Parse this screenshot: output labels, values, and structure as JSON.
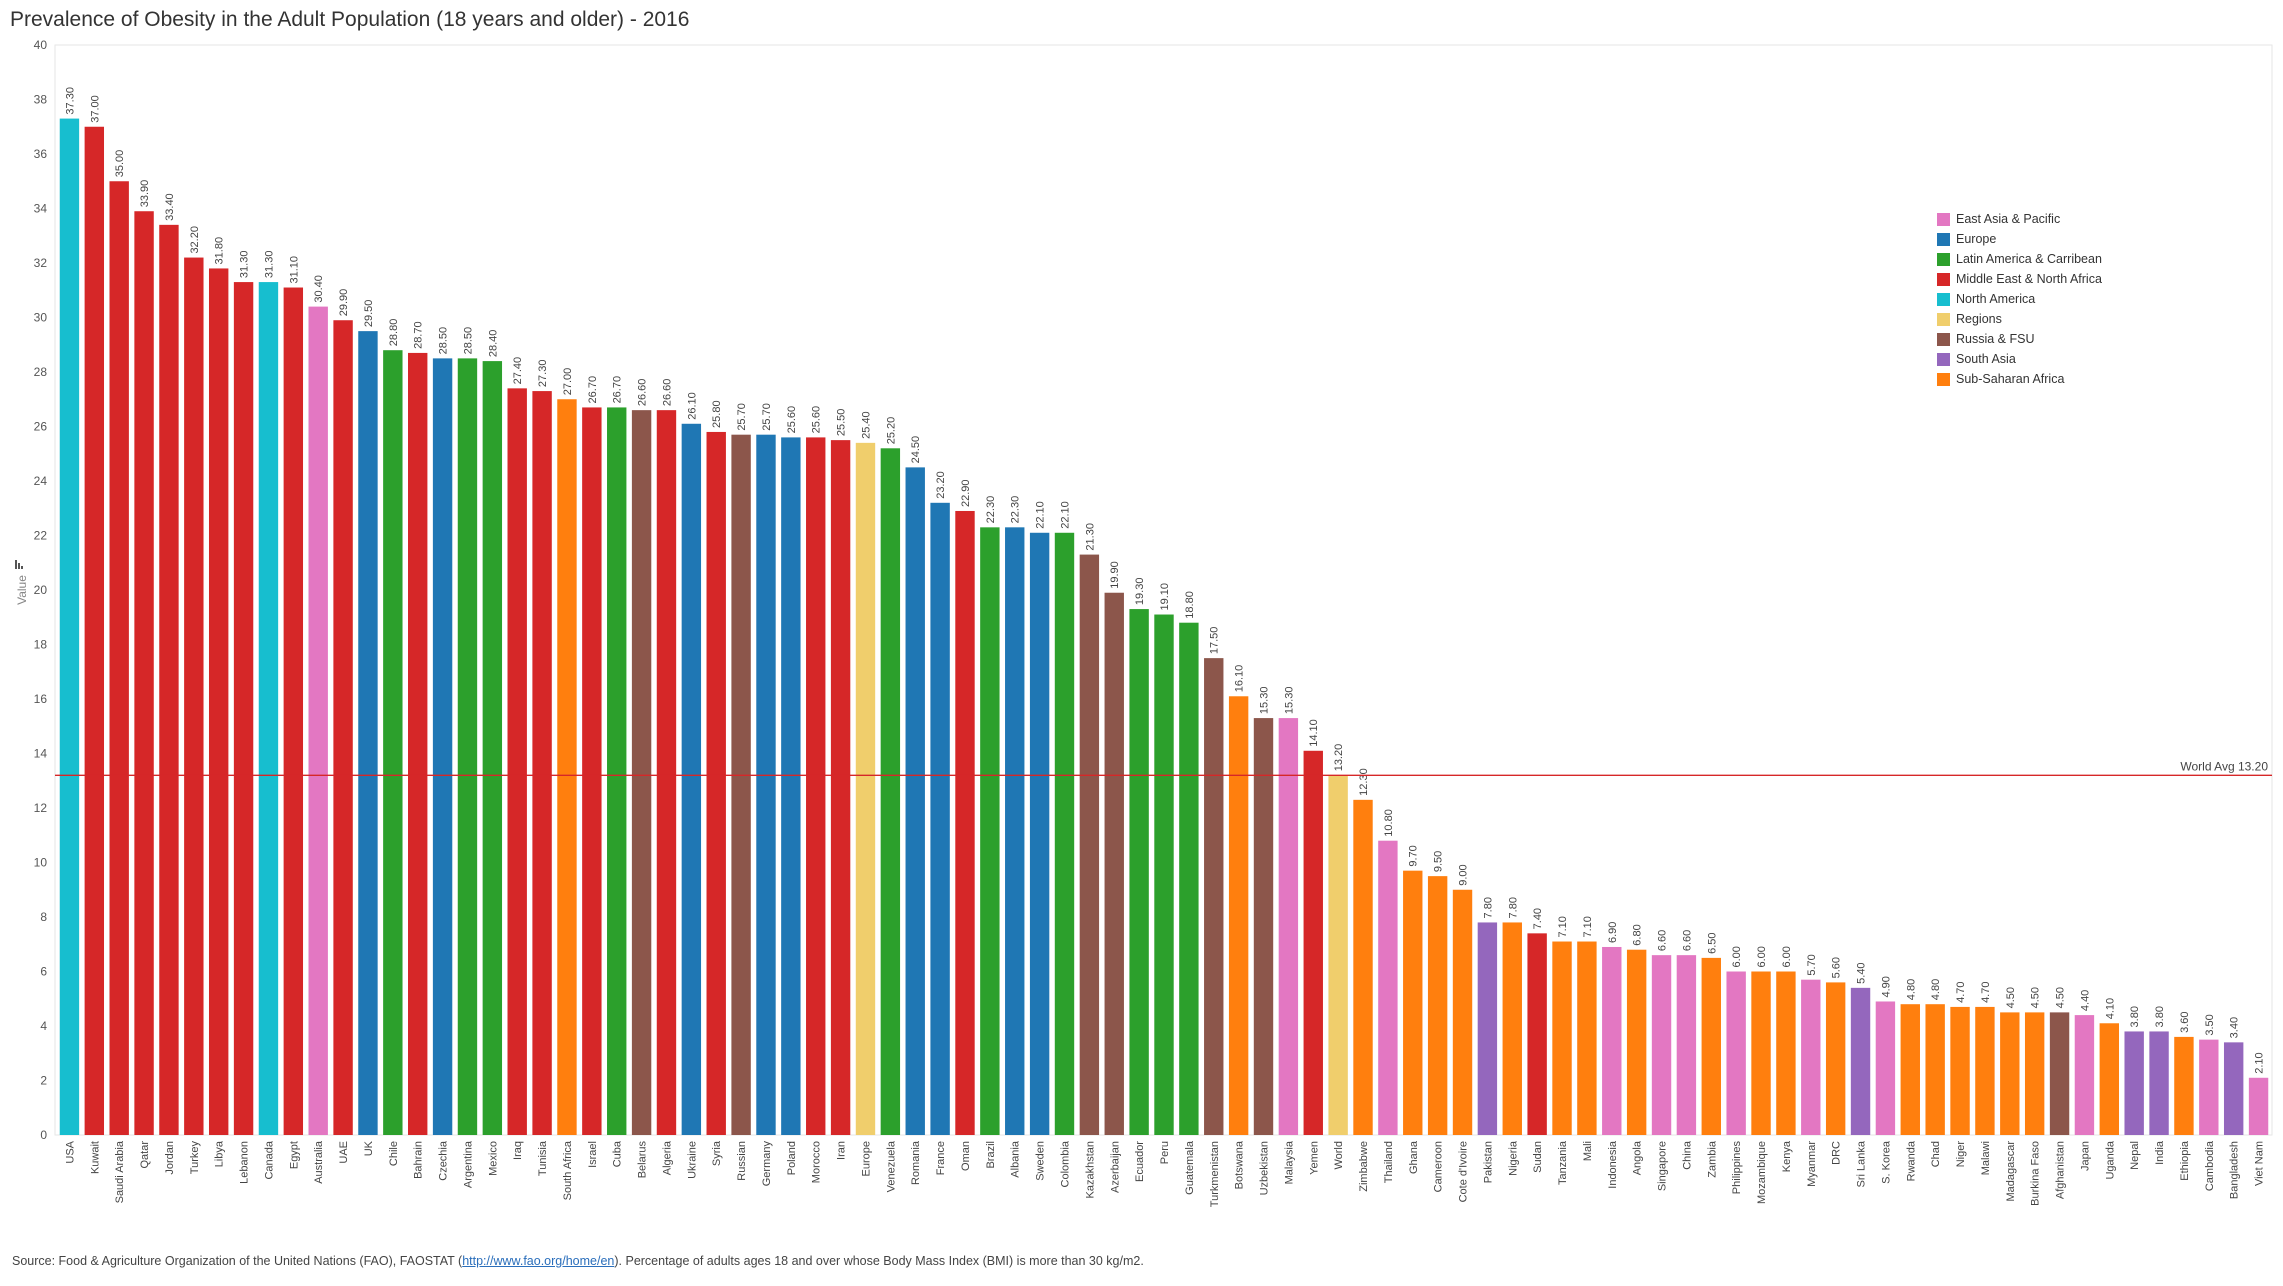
{
  "chart_data": {
    "type": "bar",
    "title": "Prevalence of Obesity in the Adult Population (18 years and older) - 2016",
    "ylabel": "Value",
    "xlabel": "",
    "ylim": [
      0,
      40
    ],
    "yticks": [
      0,
      2,
      4,
      6,
      8,
      10,
      12,
      14,
      16,
      18,
      20,
      22,
      24,
      26,
      28,
      30,
      32,
      34,
      36,
      38,
      40
    ],
    "reference_line": {
      "label": "World Avg 13.20",
      "value": 13.2
    },
    "legend_placement": "right",
    "regions": [
      {
        "name": "East Asia & Pacific",
        "color": "#e377c2"
      },
      {
        "name": "Europe",
        "color": "#1f77b4"
      },
      {
        "name": "Latin America & Carribean",
        "color": "#2ca02c"
      },
      {
        "name": "Middle East & North Africa",
        "color": "#d62728"
      },
      {
        "name": "North America",
        "color": "#17becf"
      },
      {
        "name": "Regions",
        "color": "#f0ce6c"
      },
      {
        "name": "Russia & FSU",
        "color": "#8c564b"
      },
      {
        "name": "South Asia",
        "color": "#9467bd"
      },
      {
        "name": "Sub-Saharan Africa",
        "color": "#ff7f0e"
      }
    ],
    "bars": [
      {
        "country": "USA",
        "value": 37.3,
        "label": "37.30",
        "region": "North America"
      },
      {
        "country": "Kuwait",
        "value": 37.0,
        "label": "37.00",
        "region": "Middle East & North Africa"
      },
      {
        "country": "Saudi Arabia",
        "value": 35.0,
        "label": "35.00",
        "region": "Middle East & North Africa"
      },
      {
        "country": "Qatar",
        "value": 33.9,
        "label": "33.90",
        "region": "Middle East & North Africa"
      },
      {
        "country": "Jordan",
        "value": 33.4,
        "label": "33.40",
        "region": "Middle East & North Africa"
      },
      {
        "country": "Turkey",
        "value": 32.2,
        "label": "32.20",
        "region": "Middle East & North Africa"
      },
      {
        "country": "Libya",
        "value": 31.8,
        "label": "31.80",
        "region": "Middle East & North Africa"
      },
      {
        "country": "Lebanon",
        "value": 31.3,
        "label": "31.30",
        "region": "Middle East & North Africa"
      },
      {
        "country": "Canada",
        "value": 31.3,
        "label": "31.30",
        "region": "North America"
      },
      {
        "country": "Egypt",
        "value": 31.1,
        "label": "31.10",
        "region": "Middle East & North Africa"
      },
      {
        "country": "Australia",
        "value": 30.4,
        "label": "30.40",
        "region": "East Asia & Pacific"
      },
      {
        "country": "UAE",
        "value": 29.9,
        "label": "29.90",
        "region": "Middle East & North Africa"
      },
      {
        "country": "UK",
        "value": 29.5,
        "label": "29.50",
        "region": "Europe"
      },
      {
        "country": "Chile",
        "value": 28.8,
        "label": "28.80",
        "region": "Latin America & Carribean"
      },
      {
        "country": "Bahrain",
        "value": 28.7,
        "label": "28.70",
        "region": "Middle East & North Africa"
      },
      {
        "country": "Czechia",
        "value": 28.5,
        "label": "28.50",
        "region": "Europe"
      },
      {
        "country": "Argentina",
        "value": 28.5,
        "label": "28.50",
        "region": "Latin America & Carribean"
      },
      {
        "country": "Mexico",
        "value": 28.4,
        "label": "28.40",
        "region": "Latin America & Carribean"
      },
      {
        "country": "Iraq",
        "value": 27.4,
        "label": "27.40",
        "region": "Middle East & North Africa"
      },
      {
        "country": "Tunisia",
        "value": 27.3,
        "label": "27.30",
        "region": "Middle East & North Africa"
      },
      {
        "country": "South Africa",
        "value": 27.0,
        "label": "27.00",
        "region": "Sub-Saharan Africa"
      },
      {
        "country": "Israel",
        "value": 26.7,
        "label": "26.70",
        "region": "Middle East & North Africa"
      },
      {
        "country": "Cuba",
        "value": 26.7,
        "label": "26.70",
        "region": "Latin America & Carribean"
      },
      {
        "country": "Belarus",
        "value": 26.6,
        "label": "26.60",
        "region": "Russia & FSU"
      },
      {
        "country": "Algeria",
        "value": 26.6,
        "label": "26.60",
        "region": "Middle East & North Africa"
      },
      {
        "country": "Ukraine",
        "value": 26.1,
        "label": "26.10",
        "region": "Europe"
      },
      {
        "country": "Syria",
        "value": 25.8,
        "label": "25.80",
        "region": "Middle East & North Africa"
      },
      {
        "country": "Russian",
        "value": 25.7,
        "label": "25.70",
        "region": "Russia & FSU"
      },
      {
        "country": "Germany",
        "value": 25.7,
        "label": "25.70",
        "region": "Europe"
      },
      {
        "country": "Poland",
        "value": 25.6,
        "label": "25.60",
        "region": "Europe"
      },
      {
        "country": "Morocco",
        "value": 25.6,
        "label": "25.60",
        "region": "Middle East & North Africa"
      },
      {
        "country": "Iran",
        "value": 25.5,
        "label": "25.50",
        "region": "Middle East & North Africa"
      },
      {
        "country": "Europe",
        "value": 25.4,
        "label": "25.40",
        "region": "Regions"
      },
      {
        "country": "Venezuela",
        "value": 25.2,
        "label": "25.20",
        "region": "Latin America & Carribean"
      },
      {
        "country": "Romania",
        "value": 24.5,
        "label": "24.50",
        "region": "Europe"
      },
      {
        "country": "France",
        "value": 23.2,
        "label": "23.20",
        "region": "Europe"
      },
      {
        "country": "Oman",
        "value": 22.9,
        "label": "22.90",
        "region": "Middle East & North Africa"
      },
      {
        "country": "Brazil",
        "value": 22.3,
        "label": "22.30",
        "region": "Latin America & Carribean"
      },
      {
        "country": "Albania",
        "value": 22.3,
        "label": "22.30",
        "region": "Europe"
      },
      {
        "country": "Sweden",
        "value": 22.1,
        "label": "22.10",
        "region": "Europe"
      },
      {
        "country": "Colombia",
        "value": 22.1,
        "label": "22.10",
        "region": "Latin America & Carribean"
      },
      {
        "country": "Kazakhstan",
        "value": 21.3,
        "label": "21.30",
        "region": "Russia & FSU"
      },
      {
        "country": "Azerbaijan",
        "value": 19.9,
        "label": "19.90",
        "region": "Russia & FSU"
      },
      {
        "country": "Ecuador",
        "value": 19.3,
        "label": "19.30",
        "region": "Latin America & Carribean"
      },
      {
        "country": "Peru",
        "value": 19.1,
        "label": "19.10",
        "region": "Latin America & Carribean"
      },
      {
        "country": "Guatemala",
        "value": 18.8,
        "label": "18.80",
        "region": "Latin America & Carribean"
      },
      {
        "country": "Turkmenistan",
        "value": 17.5,
        "label": "17.50",
        "region": "Russia & FSU"
      },
      {
        "country": "Botswana",
        "value": 16.1,
        "label": "16.10",
        "region": "Sub-Saharan Africa"
      },
      {
        "country": "Uzbekistan",
        "value": 15.3,
        "label": "15.30",
        "region": "Russia & FSU"
      },
      {
        "country": "Malaysia",
        "value": 15.3,
        "label": "15.30",
        "region": "East Asia & Pacific"
      },
      {
        "country": "Yemen",
        "value": 14.1,
        "label": "14.10",
        "region": "Middle East & North Africa"
      },
      {
        "country": "World",
        "value": 13.2,
        "label": "13.20",
        "region": "Regions"
      },
      {
        "country": "Zimbabwe",
        "value": 12.3,
        "label": "12.30",
        "region": "Sub-Saharan Africa"
      },
      {
        "country": "Thailand",
        "value": 10.8,
        "label": "10.80",
        "region": "East Asia & Pacific"
      },
      {
        "country": "Ghana",
        "value": 9.7,
        "label": "9.70",
        "region": "Sub-Saharan Africa"
      },
      {
        "country": "Cameroon",
        "value": 9.5,
        "label": "9.50",
        "region": "Sub-Saharan Africa"
      },
      {
        "country": "Cote d'Ivoire",
        "value": 9.0,
        "label": "9.00",
        "region": "Sub-Saharan Africa"
      },
      {
        "country": "Pakistan",
        "value": 7.8,
        "label": "7.80",
        "region": "South Asia"
      },
      {
        "country": "Nigeria",
        "value": 7.8,
        "label": "7.80",
        "region": "Sub-Saharan Africa"
      },
      {
        "country": "Sudan",
        "value": 7.4,
        "label": "7.40",
        "region": "Middle East & North Africa"
      },
      {
        "country": "Tanzania",
        "value": 7.1,
        "label": "7.10",
        "region": "Sub-Saharan Africa"
      },
      {
        "country": "Mali",
        "value": 7.1,
        "label": "7.10",
        "region": "Sub-Saharan Africa"
      },
      {
        "country": "Indonesia",
        "value": 6.9,
        "label": "6.90",
        "region": "East Asia & Pacific"
      },
      {
        "country": "Angola",
        "value": 6.8,
        "label": "6.80",
        "region": "Sub-Saharan Africa"
      },
      {
        "country": "Singapore",
        "value": 6.6,
        "label": "6.60",
        "region": "East Asia & Pacific"
      },
      {
        "country": "China",
        "value": 6.6,
        "label": "6.60",
        "region": "East Asia & Pacific"
      },
      {
        "country": "Zambia",
        "value": 6.5,
        "label": "6.50",
        "region": "Sub-Saharan Africa"
      },
      {
        "country": "Philippines",
        "value": 6.0,
        "label": "6.00",
        "region": "East Asia & Pacific"
      },
      {
        "country": "Mozambique",
        "value": 6.0,
        "label": "6.00",
        "region": "Sub-Saharan Africa"
      },
      {
        "country": "Kenya",
        "value": 6.0,
        "label": "6.00",
        "region": "Sub-Saharan Africa"
      },
      {
        "country": "Myanmar",
        "value": 5.7,
        "label": "5.70",
        "region": "East Asia & Pacific"
      },
      {
        "country": "DRC",
        "value": 5.6,
        "label": "5.60",
        "region": "Sub-Saharan Africa"
      },
      {
        "country": "Sri Lanka",
        "value": 5.4,
        "label": "5.40",
        "region": "South Asia"
      },
      {
        "country": "S. Korea",
        "value": 4.9,
        "label": "4.90",
        "region": "East Asia & Pacific"
      },
      {
        "country": "Rwanda",
        "value": 4.8,
        "label": "4.80",
        "region": "Sub-Saharan Africa"
      },
      {
        "country": "Chad",
        "value": 4.8,
        "label": "4.80",
        "region": "Sub-Saharan Africa"
      },
      {
        "country": "Niger",
        "value": 4.7,
        "label": "4.70",
        "region": "Sub-Saharan Africa"
      },
      {
        "country": "Malawi",
        "value": 4.7,
        "label": "4.70",
        "region": "Sub-Saharan Africa"
      },
      {
        "country": "Madagascar",
        "value": 4.5,
        "label": "4.50",
        "region": "Sub-Saharan Africa"
      },
      {
        "country": "Burkina Faso",
        "value": 4.5,
        "label": "4.50",
        "region": "Sub-Saharan Africa"
      },
      {
        "country": "Afghanistan",
        "value": 4.5,
        "label": "4.50",
        "region": "Russia & FSU"
      },
      {
        "country": "Japan",
        "value": 4.4,
        "label": "4.40",
        "region": "East Asia & Pacific"
      },
      {
        "country": "Uganda",
        "value": 4.1,
        "label": "4.10",
        "region": "Sub-Saharan Africa"
      },
      {
        "country": "Nepal",
        "value": 3.8,
        "label": "3.80",
        "region": "South Asia"
      },
      {
        "country": "India",
        "value": 3.8,
        "label": "3.80",
        "region": "South Asia"
      },
      {
        "country": "Ethiopia",
        "value": 3.6,
        "label": "3.60",
        "region": "Sub-Saharan Africa"
      },
      {
        "country": "Cambodia",
        "value": 3.5,
        "label": "3.50",
        "region": "East Asia & Pacific"
      },
      {
        "country": "Bangladesh",
        "value": 3.4,
        "label": "3.40",
        "region": "South Asia"
      },
      {
        "country": "Viet Nam",
        "value": 2.1,
        "label": "2.10",
        "region": "East Asia & Pacific"
      }
    ]
  },
  "source": {
    "prefix": "Source: Food & Agriculture Organization of the United Nations (FAO), FAOSTAT (",
    "link": "http://www.fao.org/home/en",
    "suffix": "). Percentage of adults ages 18 and over whose Body Mass Index (BMI) is more than 30 kg/m2."
  },
  "icons": {
    "axis_sort": "sort-icon"
  }
}
